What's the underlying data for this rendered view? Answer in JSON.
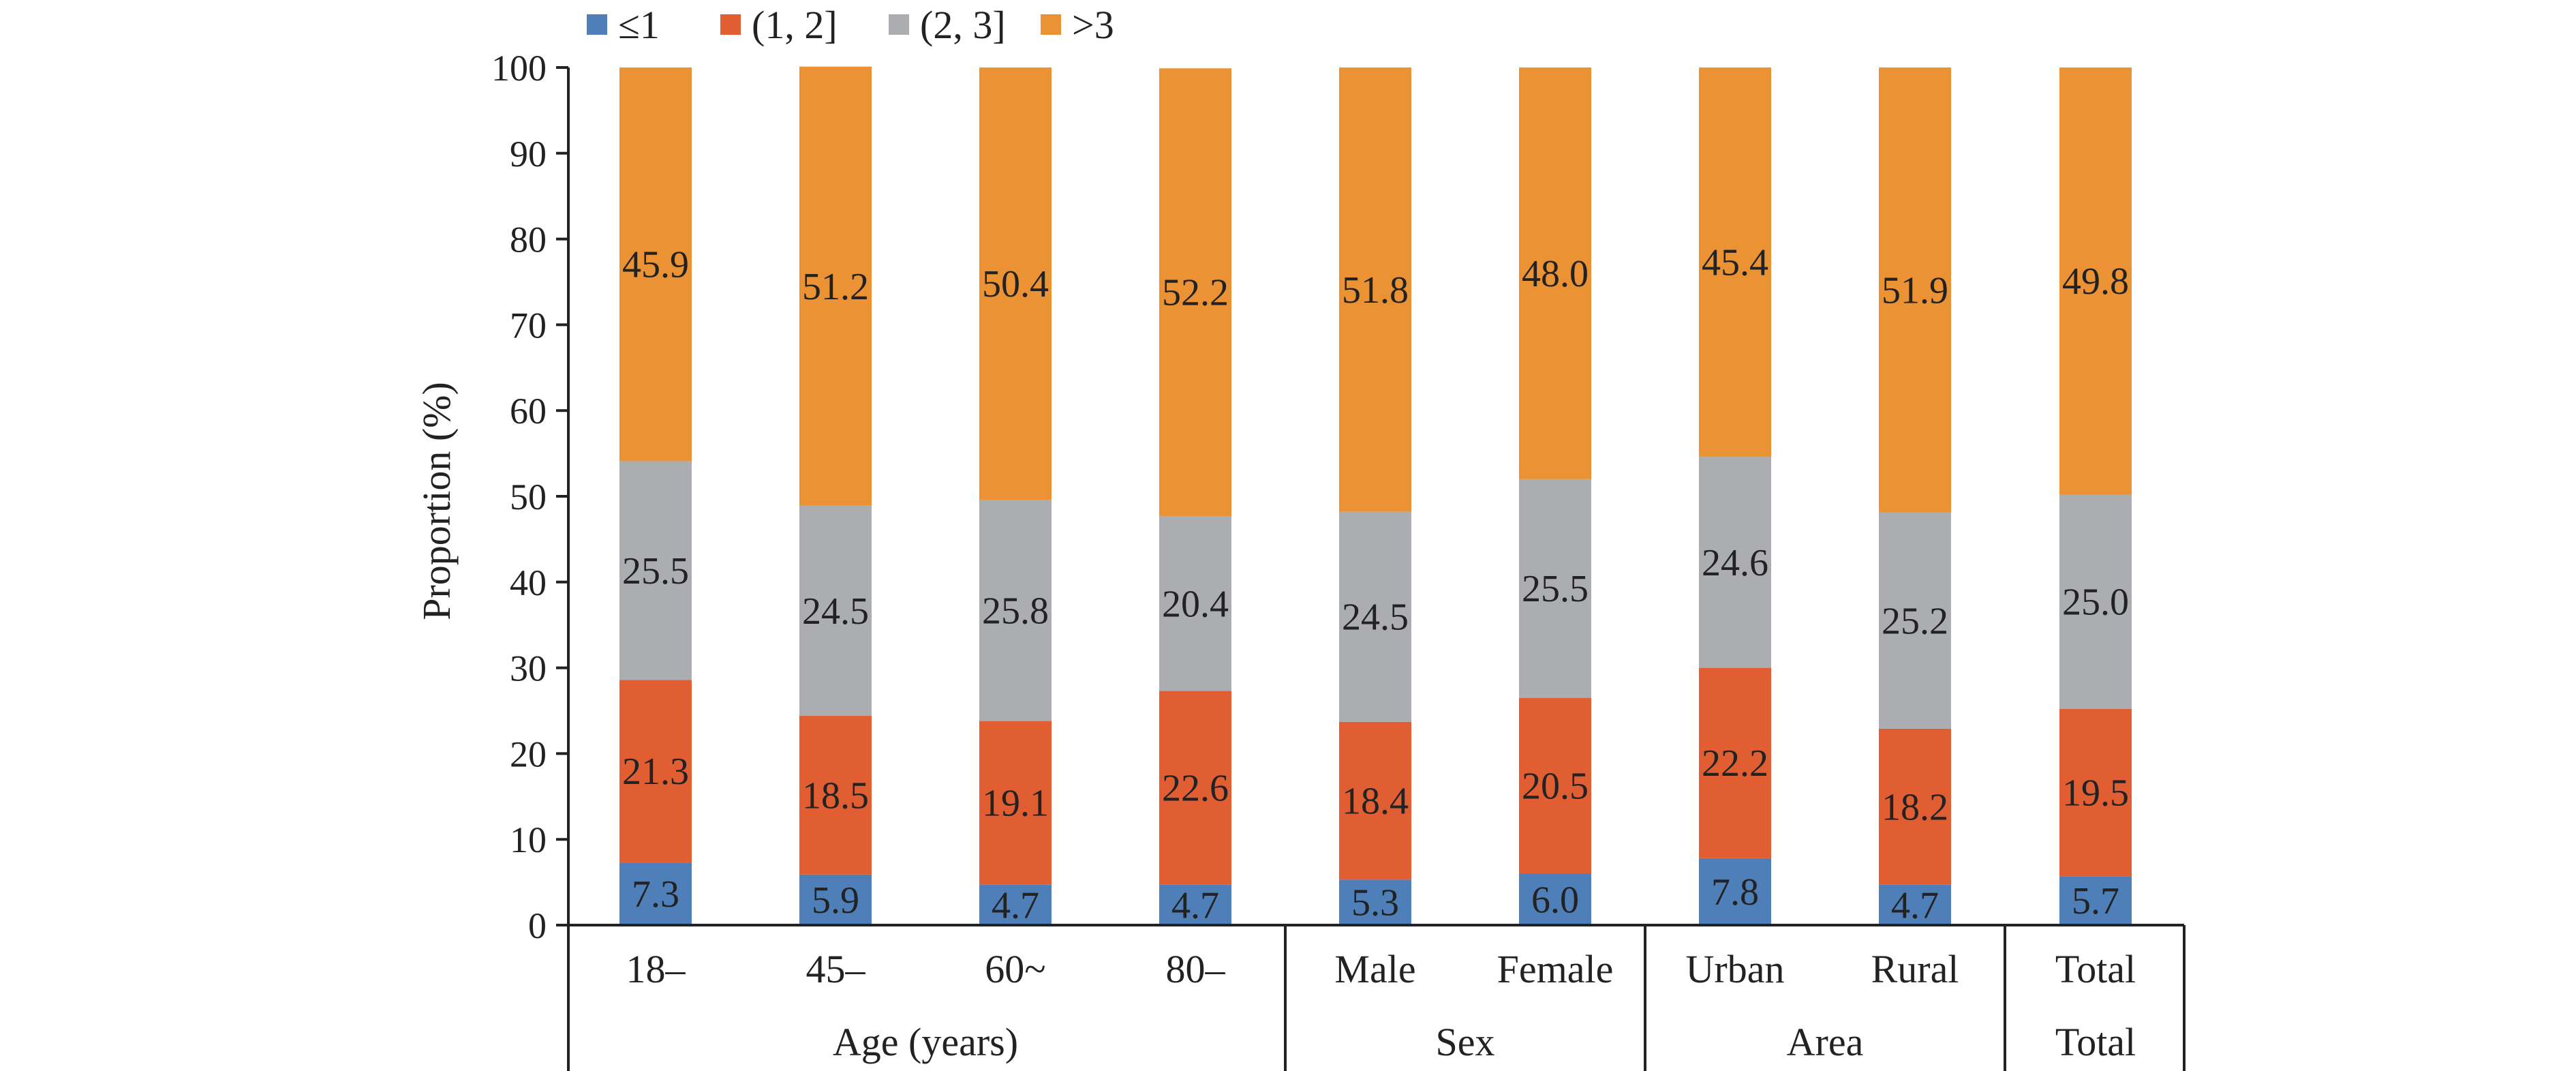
{
  "chart_data": {
    "type": "bar",
    "stacked": true,
    "title": "",
    "ylabel": "Proportion (%)",
    "ylim": [
      0,
      100
    ],
    "yticks": [
      0,
      10,
      20,
      30,
      40,
      50,
      60,
      70,
      80,
      90,
      100
    ],
    "grid": false,
    "legend_position": "top",
    "categories": [
      "18–",
      "45–",
      "60~",
      "80–",
      "Male",
      "Female",
      "Urban",
      "Rural",
      "Total"
    ],
    "groups": [
      {
        "label": "Age (years)",
        "categories": [
          "18–",
          "45–",
          "60~",
          "80–"
        ]
      },
      {
        "label": "Sex",
        "categories": [
          "Male",
          "Female"
        ]
      },
      {
        "label": "Area",
        "categories": [
          "Urban",
          "Rural"
        ]
      },
      {
        "label": "Total",
        "categories": [
          "Total"
        ]
      }
    ],
    "series": [
      {
        "name": "≤1",
        "color": "#4f7fb8",
        "values": [
          7.3,
          5.9,
          4.7,
          4.7,
          5.3,
          6.0,
          7.8,
          4.7,
          5.7
        ],
        "labels": [
          "7.3",
          "5.9",
          "4.7",
          "4.7",
          "5.3",
          "6.0",
          "7.8",
          "4.7",
          "5.7"
        ]
      },
      {
        "name": "(1, 2]",
        "color": "#e15e33",
        "values": [
          21.3,
          18.5,
          19.1,
          22.6,
          18.4,
          20.5,
          22.2,
          18.2,
          19.5
        ],
        "labels": [
          "21.3",
          "18.5",
          "19.1",
          "22.6",
          "18.4",
          "20.5",
          "22.2",
          "18.2",
          "19.5"
        ]
      },
      {
        "name": "(2, 3]",
        "color": "#acadb0",
        "values": [
          25.5,
          24.5,
          25.8,
          20.4,
          24.5,
          25.5,
          24.6,
          25.2,
          25.0
        ],
        "labels": [
          "25.5",
          "24.5",
          "25.8",
          "20.4",
          "24.5",
          "25.5",
          "24.6",
          "25.2",
          "25.0"
        ]
      },
      {
        "name": ">3",
        "color": "#ea9234",
        "values": [
          45.9,
          51.2,
          50.4,
          52.2,
          51.8,
          48.0,
          45.4,
          51.9,
          49.8
        ],
        "labels": [
          "45.9",
          "51.2",
          "50.4",
          "52.2",
          "51.8",
          "48.0",
          "45.4",
          "51.9",
          "49.8"
        ]
      }
    ]
  }
}
